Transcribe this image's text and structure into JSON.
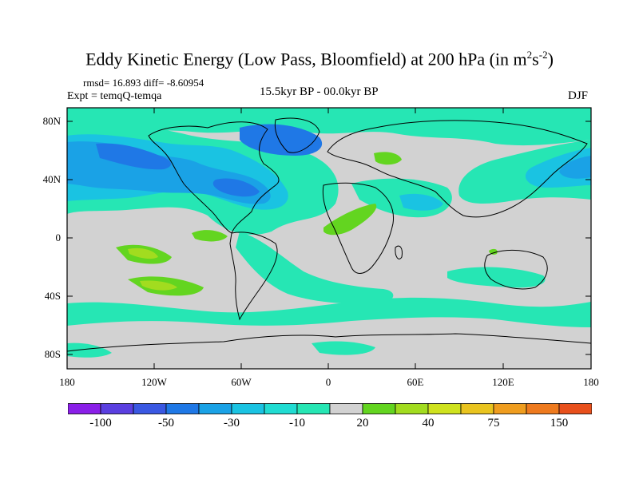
{
  "figure": {
    "title": "Eddy Kinetic Energy (Low Pass, Bloomfield) at 200 hPa (in m",
    "title_unit_sup1": "2",
    "title_unit_mid": "s",
    "title_unit_sup2": "-2",
    "title_close": ")",
    "stats": "rmsd= 16.893 diff= -8.60954",
    "experiment": "Expt = temqQ-temqa",
    "period": "15.5kyr BP - 00.0kyr BP",
    "season": "DJF"
  },
  "axes": {
    "lat_ticks": [
      "80N",
      "40N",
      "0",
      "40S",
      "80S"
    ],
    "lon_ticks": [
      "180",
      "120W",
      "60W",
      "0",
      "60E",
      "120E",
      "180"
    ]
  },
  "colorbar": {
    "colors": [
      "#8a1fe8",
      "#5a3fe0",
      "#3a58e2",
      "#1f78e6",
      "#1aa2e6",
      "#1ac3e2",
      "#20dcd2",
      "#26e6b4",
      "#d2d2d2",
      "#63d520",
      "#a2dc1f",
      "#cfe21e",
      "#e9c41f",
      "#ef9d1f",
      "#ee7a1e",
      "#e8501c"
    ],
    "labels": [
      "-100",
      "-50",
      "-30",
      "-10",
      "20",
      "40",
      "75",
      "150"
    ]
  },
  "colors": {
    "land_outline": "#000000",
    "background_field": "#d2d2d2"
  }
}
